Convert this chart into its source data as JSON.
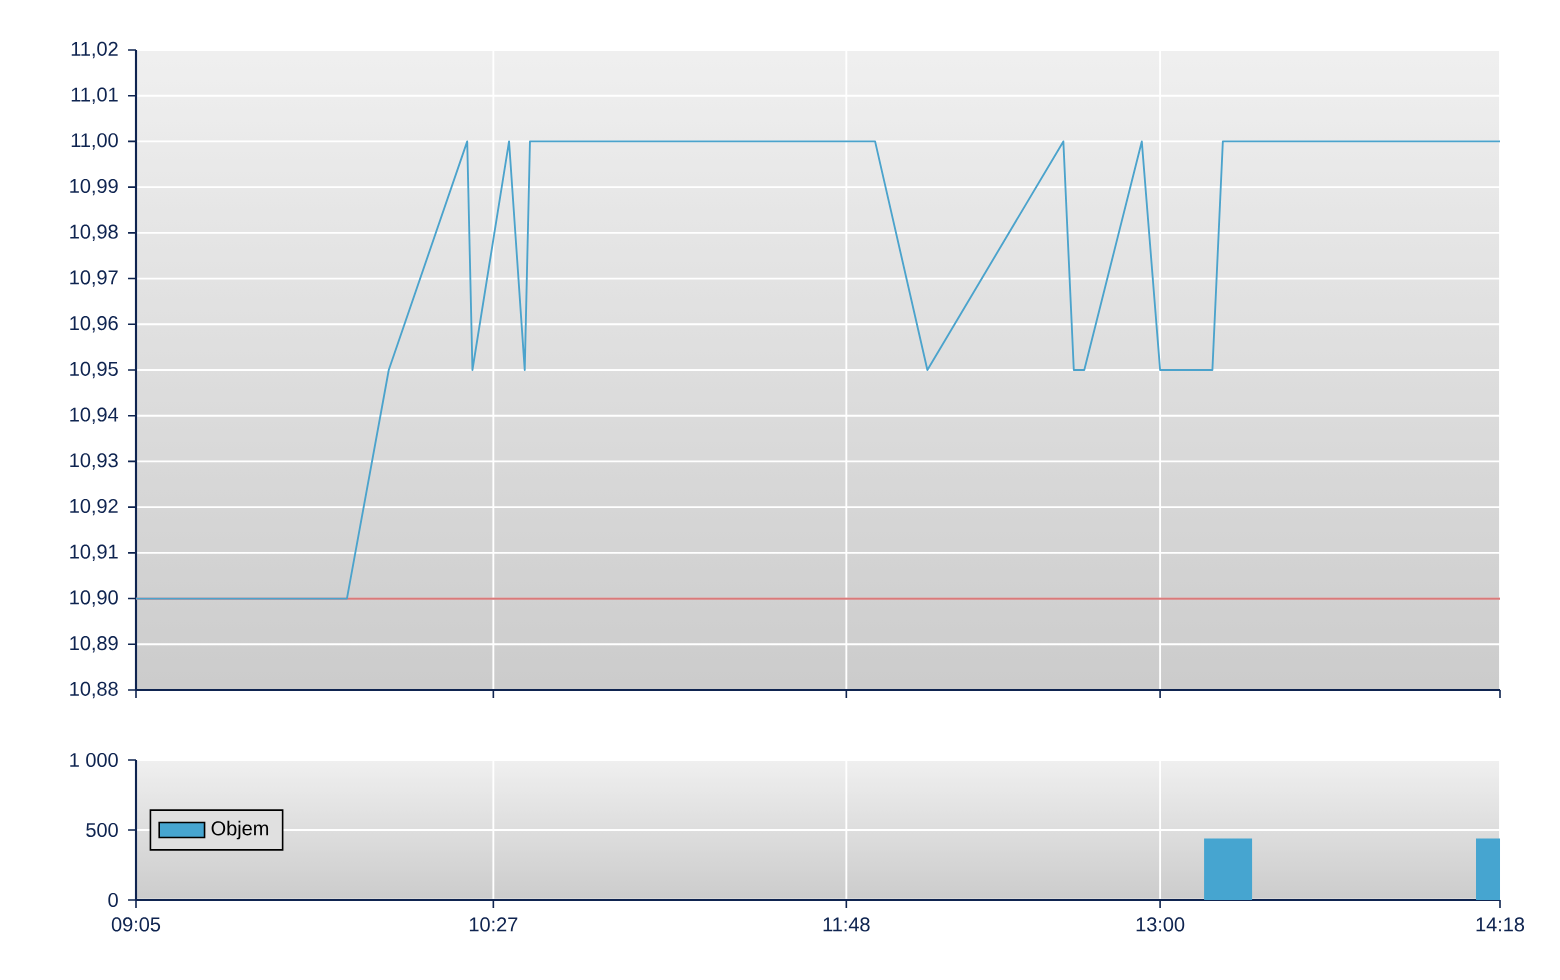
{
  "chart_data": [
    {
      "type": "line",
      "x": [
        9.0833,
        9.89,
        10.05,
        10.35,
        10.37,
        10.51,
        10.57,
        10.59,
        11.91,
        12.11,
        12.63,
        12.67,
        12.71,
        12.93,
        13.0,
        13.2,
        13.24,
        14.3
      ],
      "values": [
        10.9,
        10.9,
        10.95,
        11.0,
        10.95,
        11.0,
        10.95,
        11.0,
        11.0,
        10.95,
        11.0,
        10.95,
        10.95,
        11.0,
        10.95,
        10.95,
        11.0,
        11.0
      ],
      "color": "#4ba3cc",
      "xlim": [
        9.0833,
        14.3
      ],
      "xticks": [
        {
          "value": 9.0833,
          "label": null
        },
        {
          "value": 10.45,
          "label": null
        },
        {
          "value": 11.8,
          "label": null
        },
        {
          "value": 13.0,
          "label": null
        },
        {
          "value": 14.3,
          "label": null
        }
      ],
      "ylim": [
        10.88,
        11.02
      ],
      "yticks": [
        {
          "value": 10.88,
          "label": "10,88"
        },
        {
          "value": 10.89,
          "label": "10,89"
        },
        {
          "value": 10.9,
          "label": "10,90"
        },
        {
          "value": 10.91,
          "label": "10,91"
        },
        {
          "value": 10.92,
          "label": "10,92"
        },
        {
          "value": 10.93,
          "label": "10,93"
        },
        {
          "value": 10.94,
          "label": "10,94"
        },
        {
          "value": 10.95,
          "label": "10,95"
        },
        {
          "value": 10.96,
          "label": "10,96"
        },
        {
          "value": 10.97,
          "label": "10,97"
        },
        {
          "value": 10.98,
          "label": "10,98"
        },
        {
          "value": 10.99,
          "label": "10,99"
        },
        {
          "value": 11.0,
          "label": "11,00"
        },
        {
          "value": 11.01,
          "label": "11,01"
        },
        {
          "value": 11.02,
          "label": "11,02"
        }
      ],
      "ref_lines": [
        {
          "axis": "y",
          "value": 10.9,
          "color": "#d97a7a"
        }
      ],
      "grid": true,
      "tick_labels": "y"
    },
    {
      "type": "bar",
      "x": [
        13.26,
        14.3
      ],
      "series": [
        {
          "name": "Objem",
          "color": "#46a5d0",
          "values": [
            440,
            440
          ]
        }
      ],
      "xlim": [
        9.0833,
        14.3
      ],
      "xticks": [
        {
          "value": 9.0833,
          "label": "09:05"
        },
        {
          "value": 10.45,
          "label": "10:27"
        },
        {
          "value": 11.8,
          "label": "11:48"
        },
        {
          "value": 13.0,
          "label": "13:00"
        },
        {
          "value": 14.3,
          "label": "14:18"
        }
      ],
      "ylim": [
        0,
        1000
      ],
      "yticks": [
        0,
        500,
        {
          "value": 1000,
          "label": "1 000"
        }
      ],
      "grid": true,
      "legend": "left"
    }
  ]
}
